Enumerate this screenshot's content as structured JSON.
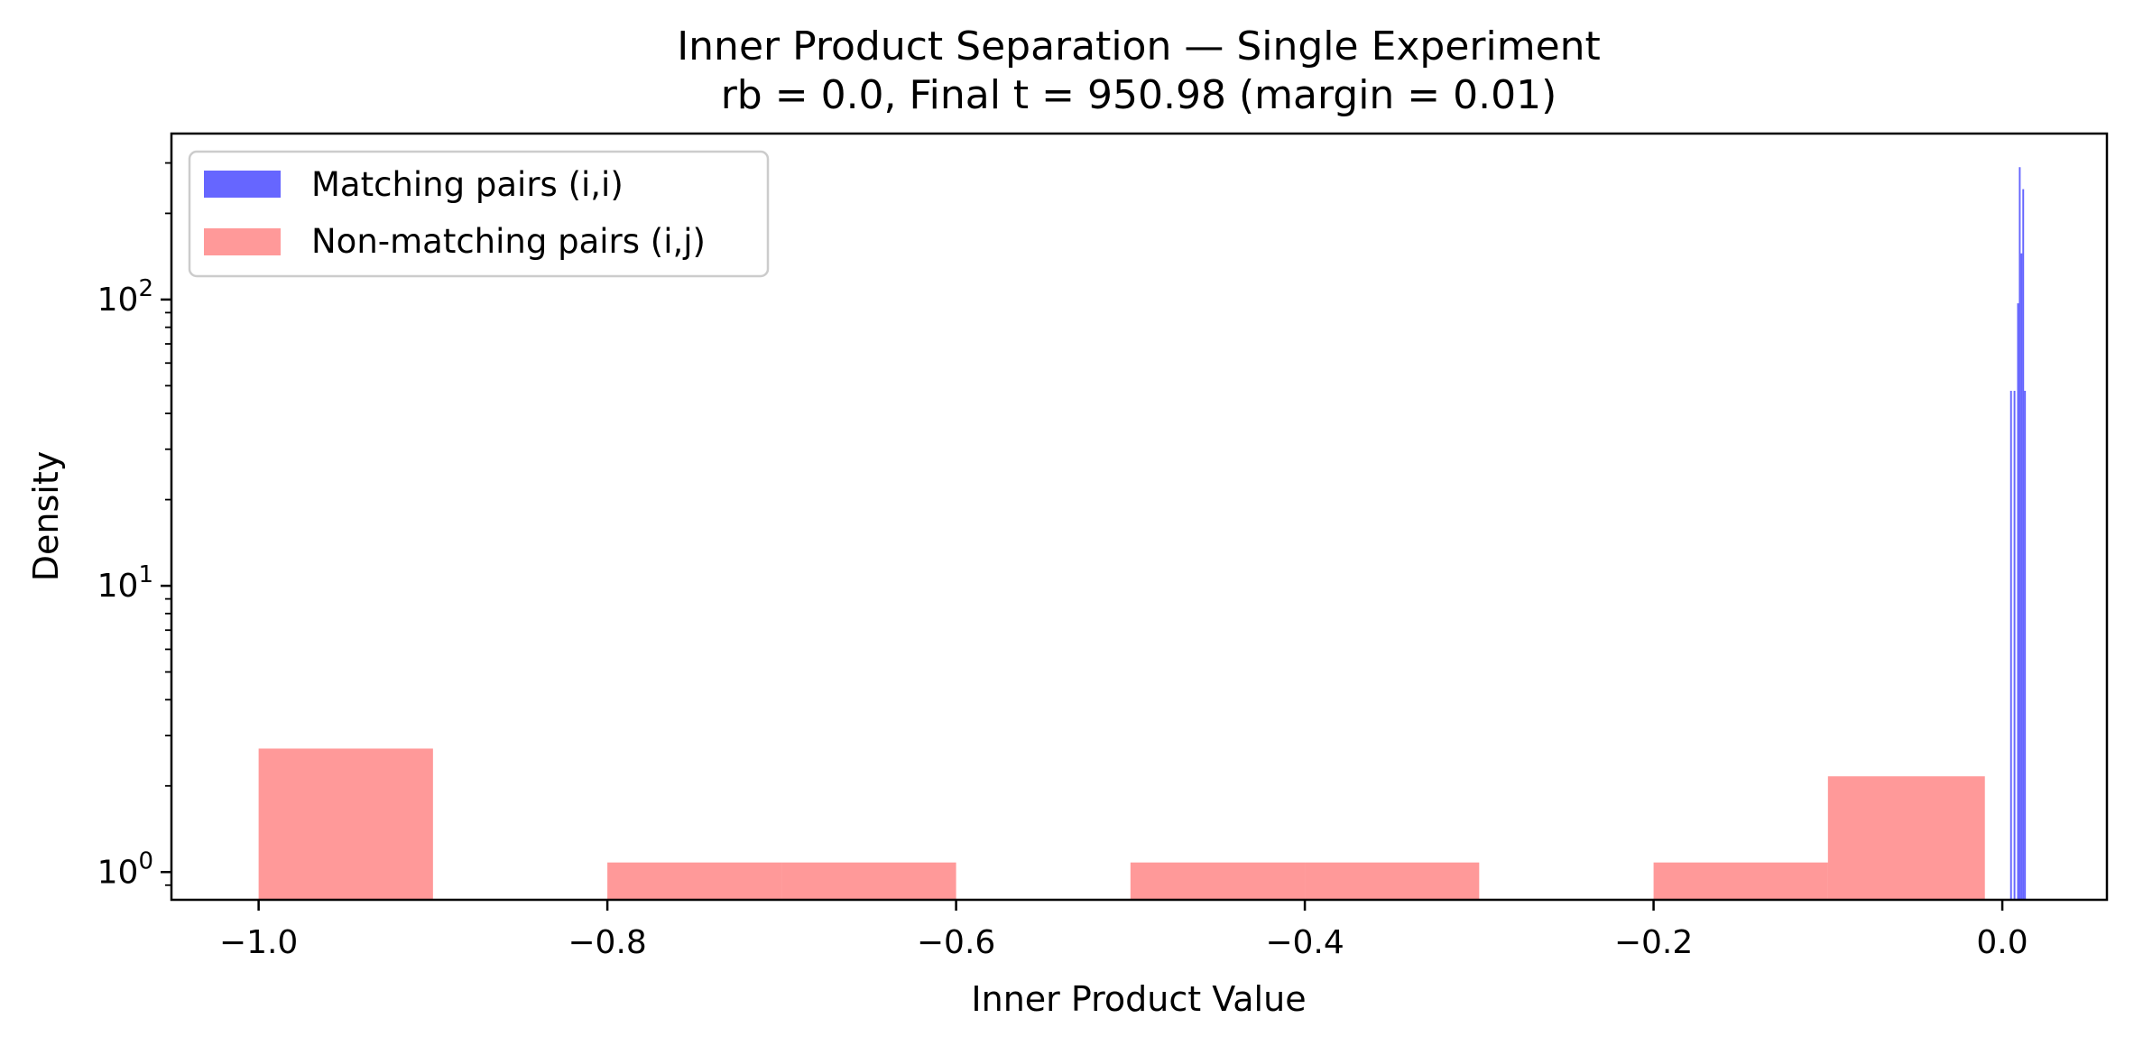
{
  "chart_data": {
    "type": "bar",
    "title": "Inner Product Separation — Single Experiment",
    "subtitle": "rb = 0.0, Final t = 950.98  (margin = 0.01)",
    "xlabel": "Inner Product Value",
    "ylabel": "Density",
    "xlim": [
      -1.05,
      0.06
    ],
    "ylim": [
      0.8,
      380
    ],
    "yscale": "log",
    "grid": false,
    "legend_position": "top-left",
    "x_ticks": [
      {
        "value": -1.0,
        "label": "−1.0"
      },
      {
        "value": -0.8,
        "label": "−0.8"
      },
      {
        "value": -0.6,
        "label": "−0.6"
      },
      {
        "value": -0.4,
        "label": "−0.4"
      },
      {
        "value": -0.2,
        "label": "−0.2"
      },
      {
        "value": 0.0,
        "label": "0.0"
      }
    ],
    "y_ticks": [
      {
        "value": 1,
        "base": "10",
        "exp": "0"
      },
      {
        "value": 10,
        "base": "10",
        "exp": "1"
      },
      {
        "value": 100,
        "base": "10",
        "exp": "2"
      }
    ],
    "series": [
      {
        "name": "Non-matching pairs (i,j)",
        "color": "#ff0000",
        "opacity": 0.4,
        "bins": [
          {
            "x0": -1.0,
            "x1": -0.9,
            "value": 2.7
          },
          {
            "x0": -0.9,
            "x1": -0.8,
            "value": 0
          },
          {
            "x0": -0.8,
            "x1": -0.7,
            "value": 1.08
          },
          {
            "x0": -0.7,
            "x1": -0.6,
            "value": 1.08
          },
          {
            "x0": -0.6,
            "x1": -0.5,
            "value": 0
          },
          {
            "x0": -0.5,
            "x1": -0.4,
            "value": 1.08
          },
          {
            "x0": -0.4,
            "x1": -0.3,
            "value": 1.08
          },
          {
            "x0": -0.3,
            "x1": -0.2,
            "value": 0
          },
          {
            "x0": -0.2,
            "x1": -0.1,
            "value": 1.08
          },
          {
            "x0": -0.1,
            "x1": -0.01,
            "value": 2.16
          }
        ]
      },
      {
        "name": "Matching pairs (i,i)",
        "color": "#0000ff",
        "opacity": 0.6,
        "bins": [
          {
            "x0": 0.0045,
            "x1": 0.0055,
            "value": 48
          },
          {
            "x0": 0.0055,
            "x1": 0.0065,
            "value": 0
          },
          {
            "x0": 0.0065,
            "x1": 0.0075,
            "value": 48
          },
          {
            "x0": 0.0075,
            "x1": 0.0085,
            "value": 0
          },
          {
            "x0": 0.0085,
            "x1": 0.0095,
            "value": 97
          },
          {
            "x0": 0.0095,
            "x1": 0.0105,
            "value": 290
          },
          {
            "x0": 0.0105,
            "x1": 0.0115,
            "value": 145
          },
          {
            "x0": 0.0115,
            "x1": 0.0125,
            "value": 243
          },
          {
            "x0": 0.0125,
            "x1": 0.0135,
            "value": 48
          }
        ]
      }
    ],
    "legend": [
      {
        "label": "Matching pairs (i,i)",
        "color": "#0000ff",
        "opacity": 0.6
      },
      {
        "label": "Non-matching pairs (i,j)",
        "color": "#ff0000",
        "opacity": 0.4
      }
    ]
  }
}
